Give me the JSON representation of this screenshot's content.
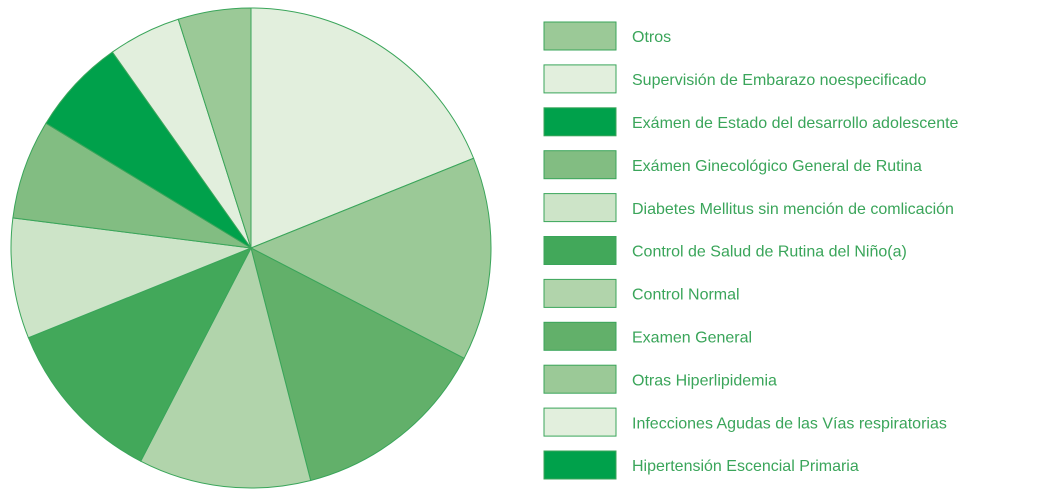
{
  "chart_data": {
    "type": "pie",
    "categories": [
      "Otros",
      "Supervisión de Embarazo noespecificado",
      "Exámen de Estado del desarrollo adolescente",
      "Exámen Ginecológico General de Rutina",
      "Diabetes Mellitus sin mención de comlicación",
      "Control de Salud de Rutina del Niño(a)",
      "Control  Normal",
      "Examen General",
      "Otras  Hiperlipidemia",
      "Infecciones Agudas de las Vías respiratorias",
      "Hipertensión  Escencial Primaria"
    ],
    "values": [
      4.9,
      4.9,
      6.5,
      6.7,
      8.1,
      11.3,
      11.6,
      13.4,
      13.7,
      18.9,
      0
    ],
    "colors": [
      "#9bc997",
      "#e2efdd",
      "#00a14b",
      "#82bd82",
      "#cde4c8",
      "#42a85a",
      "#b1d4ab",
      "#62b06a",
      "#9bc997",
      "#e2efdd",
      "#00a14b"
    ],
    "legend": "right"
  }
}
